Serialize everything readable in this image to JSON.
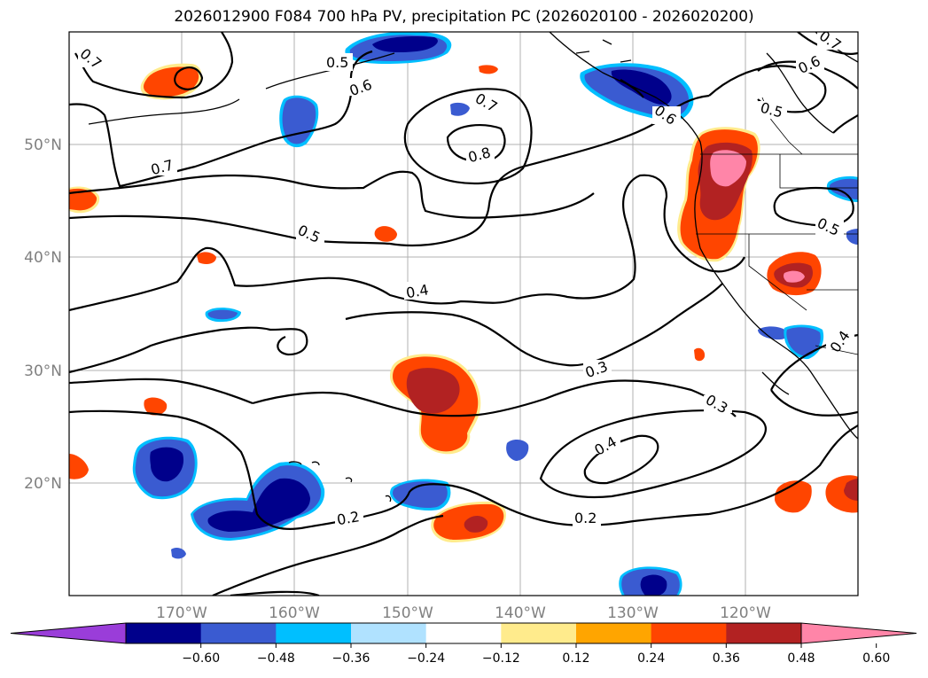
{
  "title": "2026012900 F084 700 hPa PV, precipitation PC (2026020100 - 2026020200)",
  "lat_labels": [
    "50°N",
    "40°N",
    "30°N",
    "20°N"
  ],
  "lon_labels": [
    "170°W",
    "160°W",
    "150°W",
    "140°W",
    "130°W",
    "120°W"
  ],
  "contour_labels": [
    "0.7",
    "0.5",
    "0.6",
    "0.7",
    "0.8",
    "0.7",
    "0.6",
    "0.5",
    "0.4",
    "0.3",
    "0.3",
    "0.4",
    "0.2",
    "0.2",
    "0.5",
    "0.4",
    "0.7",
    "0.6",
    "0.5"
  ],
  "colorbar": {
    "ticks": [
      "−0.60",
      "−0.48",
      "−0.36",
      "−0.24",
      "−0.12",
      "0.12",
      "0.24",
      "0.36",
      "0.48",
      "0.60"
    ],
    "colors": [
      "#9a3dd9",
      "#00008b",
      "#3a5bd1",
      "#00bfff",
      "#b0e2ff",
      "#ffffff",
      "#ffeb8c",
      "#ffa500",
      "#ff4500",
      "#b22222",
      "#ff85a8"
    ]
  },
  "map": {
    "extent": {
      "lon_min": -180,
      "lon_max": -110,
      "lat_min": 10,
      "lat_max": 60
    },
    "projection": "PlateCarree",
    "contour_field": "700 hPa PV",
    "contour_levels": [
      0.2,
      0.3,
      0.4,
      0.5,
      0.6,
      0.7,
      0.8
    ],
    "shaded_field": "precipitation PC",
    "colors": {
      "grid": "#b0b0b0",
      "contour": "#000000",
      "axis_labels": "#808080"
    }
  }
}
